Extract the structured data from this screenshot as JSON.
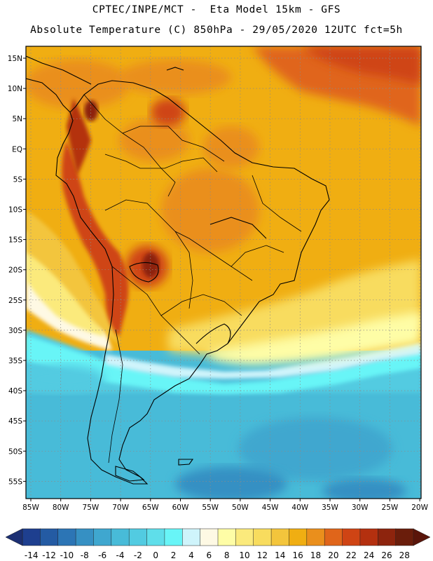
{
  "title": {
    "line1": "CPTEC/INPE/MCT -  Eta Model 15km - GFS",
    "line2": "Absolute Temperature (C) 850hPa - 29/05/2020 12UTC fct=5h"
  },
  "map": {
    "lat_labels": [
      "15N",
      "10N",
      "5N",
      "EQ",
      "5S",
      "10S",
      "15S",
      "20S",
      "25S",
      "30S",
      "35S",
      "40S",
      "45S",
      "50S",
      "55S"
    ],
    "lon_labels": [
      "85W",
      "80W",
      "75W",
      "70W",
      "65W",
      "60W",
      "55W",
      "50W",
      "45W",
      "40W",
      "35W",
      "30W",
      "25W",
      "20W"
    ],
    "gridlines": true
  },
  "colorbar": {
    "labels": [
      "-14",
      "-12",
      "-10",
      "-8",
      "-6",
      "-4",
      "-2",
      "0",
      "2",
      "4",
      "6",
      "8",
      "10",
      "12",
      "14",
      "16",
      "18",
      "20",
      "22",
      "24",
      "26",
      "28"
    ],
    "colors": [
      "#1e3f8f",
      "#245ba3",
      "#2c75b5",
      "#3690c3",
      "#3fa7cf",
      "#48bbd8",
      "#52cbe1",
      "#5fdeea",
      "#68f5f7",
      "#cff4fb",
      "#fef9e4",
      "#fefda6",
      "#fbea7c",
      "#f8dc5e",
      "#f3c53c",
      "#f0ae12",
      "#ea8f1c",
      "#e0651a",
      "#cf4414",
      "#b4300f",
      "#8d240d",
      "#6a1d0b"
    ],
    "arrow_left_color": "#1c2f73",
    "arrow_right_color": "#5a150a"
  }
}
